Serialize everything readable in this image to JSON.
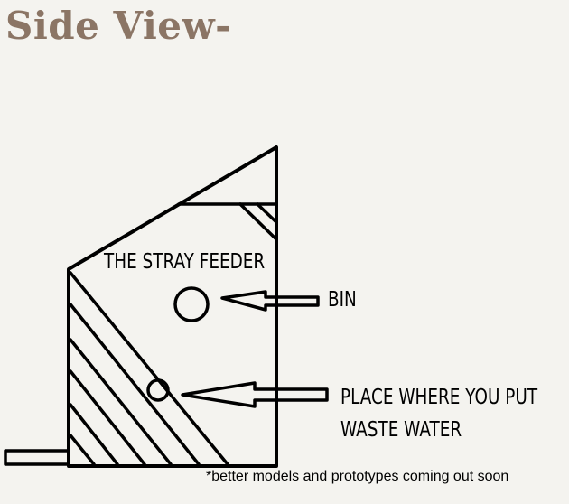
{
  "title": "Side View-",
  "colors": {
    "title": "#8b7565",
    "background": "#f4f3ef",
    "ink": "#000000"
  },
  "diagram": {
    "feeder_label": "THE STRAY FEEDER",
    "bin_label": "BIN",
    "water_label_line1": "PLACE WHERE YOU PUT",
    "water_label_line2": "WASTE WATER"
  },
  "footnote": "*better models and prototypes coming out soon"
}
